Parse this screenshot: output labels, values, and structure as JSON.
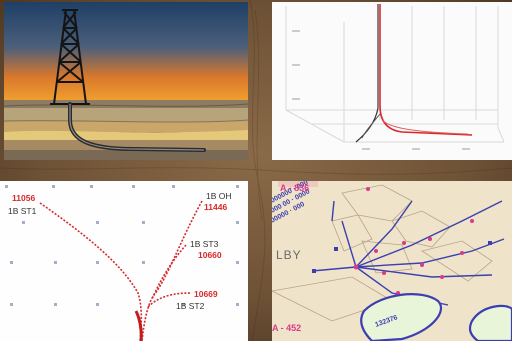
{
  "colors": {
    "background": "#6b4f34",
    "well_path_red": "#d62a2a",
    "map_blue": "#3b3fb0",
    "map_pink": "#d93a8a"
  },
  "panel_well_profile": {
    "name": "horizontal-well-derrick-illustration"
  },
  "panel_3d_plot": {
    "name": "3d-wellbore-trajectory"
  },
  "panel_plan_view": {
    "labels": {
      "st1_depth": "11056",
      "st1_name": "1B ST1",
      "oh_name": "1B OH",
      "oh_depth": "11446",
      "st3_name": "1B ST3",
      "st3_depth": "10660",
      "st2_depth": "10669",
      "st2_name": "1B ST2"
    }
  },
  "panel_map": {
    "labels": {
      "lease_top": "A - 836",
      "lease_bottom": "A - 452",
      "partial_word": "LBY",
      "tract_label": "132376"
    }
  }
}
